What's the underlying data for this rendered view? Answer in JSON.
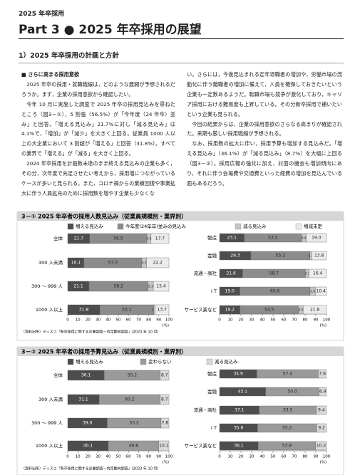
{
  "header": {
    "label": "2025 年卒採用",
    "title": "Part 3 ● 2025 年卒採用の展望"
  },
  "section": {
    "title": "1）2025 年卒採用の計画と方針",
    "subtitle": "■ さらに高まる採用意欲"
  },
  "body": {
    "left": [
      "2025 年卒の採用・就職戦線は，どのような展開が予想されるだろうか。まず，企業の採用意欲から確認したい。",
      "今年 10 月に実施した調査で 2025 年卒の採用見込みを尋ねたところ（図3－①），5 割強（56.5%）が「今年度（24 年卒）並み」と回答。「増える見込み」21.7%に対し「減る見込み」は4.1%で，「増加」が「減少」を大きく上回る。従業員 1000 人以上の大企業において 3 割超が「増える」と回答（31.8%）。すべての業界で「増える」が「減る」を大きく上回る。",
      "2024 年卒採用を計画数未達のまま終える見込みの企業も多く，その分，次年度で充足させたい考えから，採用増につながっているケースが多いと見られる。また，コロナ禍からの業績回復や事業拡大に伴う人員拡充のために採用数を増やす企業も少なくな"
    ],
    "right": [
      "い。さらには，今後見込まれる定年退職者の増加や，労働市場の流動化に伴う離職者の増加に備えて，人員を確保しておきたいという企業も一定数あるようだ。転職市場も競争が激化しており，キャリア採用における難易度も上昇している。その分新卒採用で補いたいという企業も見られる。",
      "今回の結果からは，企業の採用意欲のさらなる高まりが確認された。来期も厳しい採用戦線が予想される。",
      "なお，採用数の拡大に伴い，採用予算も増加する見込みだ。「増える見込み」（36.1%）が「減る見込み」（8.7%）を大幅に上回る（図3－②）。採用広報の強化に加え，対面の機会も増加傾向にあり，それに伴う会場費や交通費といった経費の増加を見込んでいる面もあるだろう。"
    ]
  },
  "chart_data": [
    {
      "type": "bar",
      "stacked": true,
      "orientation": "horizontal",
      "title": "3－① 2025 年卒者の採用人数見込み（従業員規模別・業界別）",
      "series": [
        {
          "name": "増える見込み",
          "color": "#4d4d4d"
        },
        {
          "name": "今年度(24年卒)並みの見込み",
          "color": "#8c8c8c"
        },
        {
          "name": "減る見込み",
          "color": "#c4c4c4"
        },
        {
          "name": "増減未定",
          "color": "#ebebeb"
        }
      ],
      "panels": [
        {
          "categories": [
            "全体",
            "300 人未満",
            "300 ～ 999 人",
            "1000 人以上"
          ],
          "series": [
            {
              "values": [
                21.7,
                16.1,
                21.1,
                31.8
              ],
              "value_labels": [
                "21.7",
                "16.1",
                "21.1",
                "31.8"
              ]
            },
            {
              "values": [
                56.5,
                57.0,
                58.2,
                53.1
              ],
              "value_labels": [
                "56.5",
                "57.0",
                "58.2",
                "53.1"
              ]
            },
            {
              "values": [
                4.1,
                4.7,
                5.3,
                1.4
              ],
              "value_labels": [
                "4.1",
                "4.7",
                "5.3",
                "1.4"
              ]
            },
            {
              "values": [
                17.7,
                22.2,
                15.4,
                13.7
              ],
              "value_labels": [
                "17.7",
                "22.2",
                "15.4",
                "13.7"
              ]
            }
          ]
        },
        {
          "categories": [
            "製造",
            "金融",
            "流通・商社",
            "I T",
            "サービス業など"
          ],
          "series": [
            {
              "values": [
                23.1,
                29.3,
                21.6,
                19.0,
                19.2
              ],
              "value_labels": [
                "23.1",
                "29.3",
                "21.6",
                "19.0",
                "19.2"
              ]
            },
            {
              "values": [
                53.5,
                55.2,
                58.7,
                65.6,
                54.5
              ],
              "value_labels": [
                "53.5",
                "55.2",
                "58.7",
                "65.6",
                "54.5"
              ]
            },
            {
              "values": [
                4.4,
                1.7,
                3.3,
                5.0,
                4.5
              ],
              "value_labels": [
                "4.4",
                "1.7",
                "3.3",
                "5.0",
                "4.5"
              ]
            },
            {
              "values": [
                19.0,
                13.8,
                16.4,
                10.4,
                21.8
              ],
              "value_labels": [
                "19.0",
                "13.8",
                "16.4",
                "10.4",
                "21.8"
              ]
            }
          ]
        }
      ],
      "xlim": [
        0,
        100
      ],
      "xticks": [
        0,
        10,
        20,
        30,
        40,
        50,
        60,
        70,
        80,
        90,
        100
      ],
      "unit_label": "(%)",
      "source": "（資料出所）ディスコ「新卒採用に関する企業調査－内定動向調査」(2023 年 10 月)"
    },
    {
      "type": "bar",
      "stacked": true,
      "orientation": "horizontal",
      "title": "3－② 2025 年卒者の採用予算見込み（従業員規模別・業界別）",
      "series": [
        {
          "name": "増える見込み",
          "color": "#4d4d4d"
        },
        {
          "name": "変わらない",
          "color": "#9a9a9a"
        },
        {
          "name": "減る見込み",
          "color": "#d9d9d9"
        }
      ],
      "panels": [
        {
          "categories": [
            "全体",
            "300 人未満",
            "300 ～ 999 人",
            "1000 人以上"
          ],
          "series": [
            {
              "values": [
                36.1,
                31.1,
                39.0,
                40.1
              ],
              "value_labels": [
                "36.1",
                "31.1",
                "39.0",
                "40.1"
              ]
            },
            {
              "values": [
                55.2,
                60.2,
                53.2,
                49.8
              ],
              "value_labels": [
                "55.2",
                "60.2",
                "53.2",
                "49.8"
              ]
            },
            {
              "values": [
                8.7,
                8.7,
                7.8,
                10.1
              ],
              "value_labels": [
                "8.7",
                "8.7",
                "7.8",
                "10.1"
              ]
            }
          ]
        },
        {
          "categories": [
            "製造",
            "金融",
            "流通・商社",
            "I T",
            "サービス業など"
          ],
          "series": [
            {
              "values": [
                34.9,
                43.1,
                37.1,
                35.6,
                36.1
              ],
              "value_labels": [
                "34.9",
                "43.1",
                "37.1",
                "35.6",
                "36.1"
              ]
            },
            {
              "values": [
                57.4,
                50.0,
                53.5,
                55.2,
                53.8
              ],
              "value_labels": [
                "57.4",
                "50.0",
                "53.5",
                "55.2",
                "53.8"
              ]
            },
            {
              "values": [
                7.6,
                6.9,
                9.4,
                9.2,
                10.2
              ],
              "value_labels": [
                "7.6",
                "6.9",
                "9.4",
                "9.2",
                "10.2"
              ]
            }
          ]
        }
      ],
      "xlim": [
        0,
        100
      ],
      "xticks": [
        0,
        10,
        20,
        30,
        40,
        50,
        60,
        70,
        80,
        90,
        100
      ],
      "unit_label": "(%)",
      "source": "（資料出所）ディスコ「新卒採用に関する企業調査－内定動向調査」(2023 年 10 月)"
    }
  ]
}
